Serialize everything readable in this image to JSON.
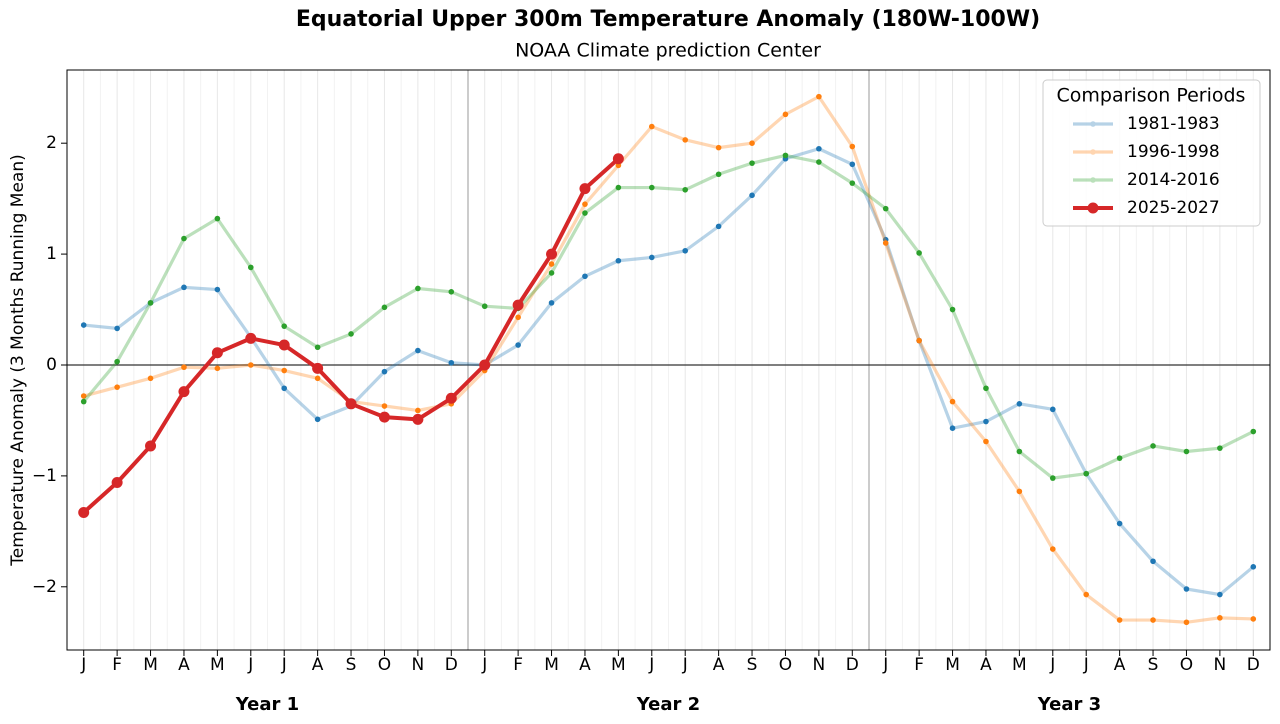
{
  "chart_data": {
    "type": "line",
    "title": "Equatorial Upper 300m Temperature Anomaly (180W-100W)",
    "subtitle": "NOAA Climate prediction Center",
    "y_label": "Temperature Anomaly (3 Months Running Mean)",
    "annotations": [
      "Year 1",
      "Year 2",
      "Year 3"
    ],
    "categories": [
      "J",
      "F",
      "M",
      "A",
      "M",
      "J",
      "J",
      "A",
      "S",
      "O",
      "N",
      "D",
      "J",
      "F",
      "M",
      "A",
      "M",
      "J",
      "J",
      "A",
      "S",
      "O",
      "N",
      "D",
      "J",
      "F",
      "M",
      "A",
      "M",
      "J",
      "J",
      "A",
      "S",
      "O",
      "N",
      "D"
    ],
    "legend_title": "Comparison Periods",
    "legend": "upper right",
    "reference_line": 0,
    "grid": true,
    "ylim": [
      -2.57,
      2.66
    ],
    "yticks": [
      {
        "value": -2,
        "label": "−2"
      },
      {
        "value": -1,
        "label": "−1"
      },
      0,
      1,
      2
    ],
    "series": [
      {
        "name": "1981-1983",
        "color": "#1f77b4",
        "opacity": 0.32,
        "values": [
          0.36,
          0.33,
          0.56,
          0.7,
          0.68,
          0.25,
          -0.21,
          -0.49,
          -0.37,
          -0.06,
          0.13,
          0.02,
          0.0,
          0.18,
          0.56,
          0.8,
          0.94,
          0.97,
          1.03,
          1.25,
          1.53,
          1.86,
          1.95,
          1.81,
          1.13,
          0.22,
          -0.57,
          -0.51,
          -0.35,
          -0.4,
          -0.98,
          -1.43,
          -1.77,
          -2.02,
          -2.07,
          -1.82
        ]
      },
      {
        "name": "1996-1998",
        "color": "#ff7f0e",
        "opacity": 0.32,
        "values": [
          -0.28,
          -0.2,
          -0.12,
          -0.02,
          -0.03,
          0.0,
          -0.05,
          -0.12,
          -0.33,
          -0.37,
          -0.41,
          -0.35,
          -0.05,
          0.43,
          0.91,
          1.45,
          1.8,
          2.15,
          2.03,
          1.96,
          2.0,
          2.26,
          2.42,
          1.97,
          1.1,
          0.22,
          -0.33,
          -0.69,
          -1.14,
          -1.66,
          -2.07,
          -2.3,
          -2.3,
          -2.32,
          -2.28,
          -2.29
        ]
      },
      {
        "name": "2014-2016",
        "color": "#2ca02c",
        "opacity": 0.32,
        "values": [
          -0.33,
          0.03,
          0.56,
          1.14,
          1.32,
          0.88,
          0.35,
          0.16,
          0.28,
          0.52,
          0.69,
          0.66,
          0.53,
          0.51,
          0.83,
          1.37,
          1.6,
          1.6,
          1.58,
          1.72,
          1.82,
          1.89,
          1.83,
          1.64,
          1.41,
          1.01,
          0.5,
          -0.21,
          -0.78,
          -1.02,
          -0.98,
          -0.84,
          -0.73,
          -0.78,
          -0.75,
          -0.6
        ]
      },
      {
        "name": "2025-2027",
        "color": "#d62728",
        "opacity": 1,
        "values": [
          -1.33,
          -1.06,
          -0.73,
          -0.24,
          0.11,
          0.24,
          0.18,
          -0.03,
          -0.35,
          -0.47,
          -0.49,
          -0.3,
          0.0,
          0.54,
          1.0,
          1.59,
          1.86,
          null,
          null,
          null,
          null,
          null,
          null,
          null,
          null,
          null,
          null,
          null,
          null,
          null,
          null,
          null,
          null,
          null,
          null,
          null
        ]
      }
    ]
  }
}
